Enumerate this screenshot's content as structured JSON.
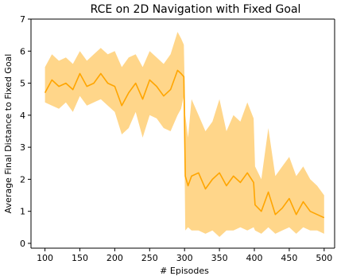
{
  "chart_data": {
    "type": "line",
    "title": "RCE on 2D Navigation with Fixed Goal",
    "xlabel": "# Episodes",
    "ylabel": "Average Final Distance to Fixed Goal",
    "xlim": [
      80,
      515
    ],
    "ylim": [
      -0.15,
      7
    ],
    "xticks": [
      100,
      150,
      200,
      250,
      300,
      350,
      400,
      450,
      500
    ],
    "yticks": [
      0,
      1,
      2,
      3,
      4,
      5,
      6,
      7
    ],
    "grid": false,
    "legend": "none",
    "colors": {
      "line": "#FFA500",
      "band": "#FFD68A"
    },
    "series": [
      {
        "x": [
          100,
          110,
          120,
          130,
          140,
          150,
          160,
          170,
          180,
          190,
          200,
          210,
          220,
          230,
          240,
          250,
          260,
          270,
          280,
          290,
          295,
          299,
          301,
          305,
          310,
          320,
          330,
          340,
          350,
          360,
          370,
          380,
          390,
          399,
          401,
          410,
          420,
          430,
          440,
          450,
          460,
          470,
          480,
          490,
          500
        ],
        "mean": [
          4.7,
          5.1,
          4.9,
          5.0,
          4.8,
          5.3,
          4.9,
          5.0,
          5.3,
          5.0,
          4.9,
          4.3,
          4.7,
          5.0,
          4.5,
          5.1,
          4.9,
          4.6,
          4.8,
          5.4,
          5.3,
          5.2,
          2.1,
          1.8,
          2.1,
          2.2,
          1.7,
          2.0,
          2.2,
          1.8,
          2.1,
          1.9,
          2.2,
          1.9,
          1.2,
          1.0,
          1.6,
          0.9,
          1.1,
          1.4,
          0.9,
          1.3,
          1.0,
          0.9,
          0.8
        ],
        "upper": [
          5.5,
          5.9,
          5.7,
          5.8,
          5.6,
          6.0,
          5.7,
          5.9,
          6.1,
          5.9,
          6.0,
          5.5,
          5.8,
          5.9,
          5.5,
          6.0,
          5.8,
          5.6,
          5.9,
          6.6,
          6.4,
          6.2,
          4.0,
          3.3,
          4.5,
          4.0,
          3.5,
          3.8,
          4.5,
          3.5,
          4.0,
          3.8,
          4.4,
          3.9,
          2.4,
          2.0,
          3.6,
          2.1,
          2.4,
          2.7,
          2.1,
          2.4,
          2.0,
          1.8,
          1.5
        ],
        "lower": [
          4.4,
          4.3,
          4.2,
          4.4,
          4.1,
          4.6,
          4.3,
          4.4,
          4.5,
          4.3,
          4.1,
          3.4,
          3.6,
          4.1,
          3.3,
          4.0,
          3.9,
          3.6,
          3.5,
          4.0,
          4.2,
          4.6,
          0.4,
          0.5,
          0.4,
          0.4,
          0.3,
          0.4,
          0.2,
          0.4,
          0.4,
          0.5,
          0.4,
          0.5,
          0.4,
          0.3,
          0.5,
          0.3,
          0.4,
          0.5,
          0.3,
          0.5,
          0.4,
          0.4,
          0.3
        ]
      }
    ]
  }
}
